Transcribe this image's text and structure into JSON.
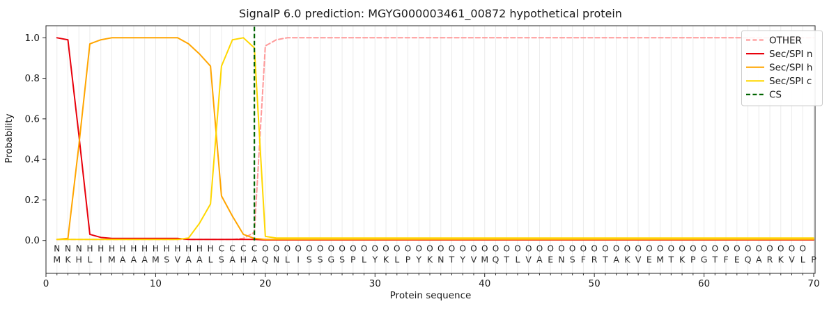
{
  "title": "SignalP 6.0 prediction: MGYG000003461_00872 hypothetical protein",
  "chart_data": {
    "type": "line",
    "title": "SignalP 6.0 prediction: MGYG000003461_00872 hypothetical protein",
    "xlabel": "Protein sequence",
    "ylabel": "Probability",
    "xlim": [
      0,
      70.2
    ],
    "ylim": [
      -0.16,
      1.06
    ],
    "x_ticks": [
      0,
      10,
      20,
      30,
      40,
      50,
      60,
      70
    ],
    "y_ticks": [
      "0.0",
      "0.2",
      "0.4",
      "0.6",
      "0.8",
      "1.0"
    ],
    "grid": "vertical gridline at every residue position",
    "legend_position": "upper right",
    "legend_entries": [
      "OTHER",
      "Sec/SPI n",
      "Sec/SPI h",
      "Sec/SPI c",
      "CS"
    ],
    "cs_position": 19,
    "sequence": "MKHLIMAAAMSVAALSAHAQNLISSGSPLYKLPYKNTYVMQTLVAENSFRTAKVEMTKPGTFEQARKVLP",
    "residue_labels": "NNNHHHHHHHHHHHHCCCCOOOOOOOOOOOOOOOOOOOOOOOOOOOOOOOOOOOOOOOOOOOOOOOOOO",
    "label_colors": {
      "N": "#e8000b",
      "H": "#ffa500",
      "C": "#ffd700",
      "O": "#999999"
    },
    "series": [
      {
        "name": "OTHER",
        "color": "#ff9999",
        "style": "dashed",
        "values": [
          0.005,
          0.005,
          0.005,
          0.005,
          0.005,
          0.005,
          0.005,
          0.005,
          0.005,
          0.005,
          0.005,
          0.005,
          0.005,
          0.005,
          0.005,
          0.005,
          0.005,
          0.01,
          0.04,
          0.96,
          0.99,
          1,
          1,
          1,
          1,
          1,
          1,
          1,
          1,
          1,
          1,
          1,
          1,
          1,
          1,
          1,
          1,
          1,
          1,
          1,
          1,
          1,
          1,
          1,
          1,
          1,
          1,
          1,
          1,
          1,
          1,
          1,
          1,
          1,
          1,
          1,
          1,
          1,
          1,
          1,
          1,
          1,
          1,
          1,
          1,
          1,
          1,
          1,
          1,
          1
        ]
      },
      {
        "name": "Sec/SPI n",
        "color": "#e8000b",
        "style": "solid",
        "values": [
          1,
          0.99,
          0.52,
          0.03,
          0.015,
          0.01,
          0.01,
          0.01,
          0.01,
          0.01,
          0.01,
          0.01,
          0.005,
          0.005,
          0.005,
          0.005,
          0.005,
          0.005,
          0.005,
          0.003,
          0.003,
          0.003,
          0.003,
          0.003,
          0.003,
          0.003,
          0.003,
          0.003,
          0.003,
          0.003,
          0.003,
          0.003,
          0.003,
          0.003,
          0.003,
          0.003,
          0.003,
          0.003,
          0.003,
          0.003,
          0.003,
          0.003,
          0.003,
          0.003,
          0.003,
          0.003,
          0.003,
          0.003,
          0.003,
          0.003,
          0.003,
          0.003,
          0.003,
          0.003,
          0.003,
          0.003,
          0.003,
          0.003,
          0.003,
          0.003,
          0.003,
          0.003,
          0.003,
          0.003,
          0.003,
          0.003,
          0.003,
          0.003,
          0.003,
          0.003
        ]
      },
      {
        "name": "Sec/SPI h",
        "color": "#ffa500",
        "style": "solid",
        "values": [
          0.005,
          0.01,
          0.47,
          0.97,
          0.99,
          1,
          1,
          1,
          1,
          1,
          1,
          1,
          0.97,
          0.92,
          0.86,
          0.22,
          0.12,
          0.03,
          0.01,
          0.005,
          0.005,
          0.005,
          0.005,
          0.005,
          0.005,
          0.005,
          0.005,
          0.005,
          0.005,
          0.005,
          0.005,
          0.005,
          0.005,
          0.005,
          0.005,
          0.005,
          0.005,
          0.005,
          0.005,
          0.005,
          0.005,
          0.005,
          0.005,
          0.005,
          0.005,
          0.005,
          0.005,
          0.005,
          0.005,
          0.005,
          0.005,
          0.005,
          0.005,
          0.005,
          0.005,
          0.005,
          0.005,
          0.005,
          0.005,
          0.005,
          0.005,
          0.005,
          0.005,
          0.005,
          0.005,
          0.005,
          0.005,
          0.005,
          0.005,
          0.005
        ]
      },
      {
        "name": "Sec/SPI c",
        "color": "#ffd700",
        "style": "solid",
        "values": [
          0.005,
          0.005,
          0.005,
          0.005,
          0.005,
          0.005,
          0.005,
          0.005,
          0.005,
          0.005,
          0.005,
          0.005,
          0.012,
          0.085,
          0.18,
          0.86,
          0.99,
          1,
          0.95,
          0.02,
          0.012,
          0.012,
          0.012,
          0.012,
          0.012,
          0.012,
          0.012,
          0.012,
          0.012,
          0.012,
          0.012,
          0.012,
          0.012,
          0.012,
          0.012,
          0.012,
          0.012,
          0.012,
          0.012,
          0.012,
          0.012,
          0.012,
          0.012,
          0.012,
          0.012,
          0.012,
          0.012,
          0.012,
          0.012,
          0.012,
          0.012,
          0.012,
          0.012,
          0.012,
          0.012,
          0.012,
          0.012,
          0.012,
          0.012,
          0.012,
          0.012,
          0.012,
          0.012,
          0.012,
          0.012,
          0.012,
          0.012,
          0.012,
          0.012,
          0.012
        ]
      },
      {
        "name": "CS",
        "color": "#006400",
        "style": "dashed-vertical",
        "x": 19
      }
    ]
  }
}
